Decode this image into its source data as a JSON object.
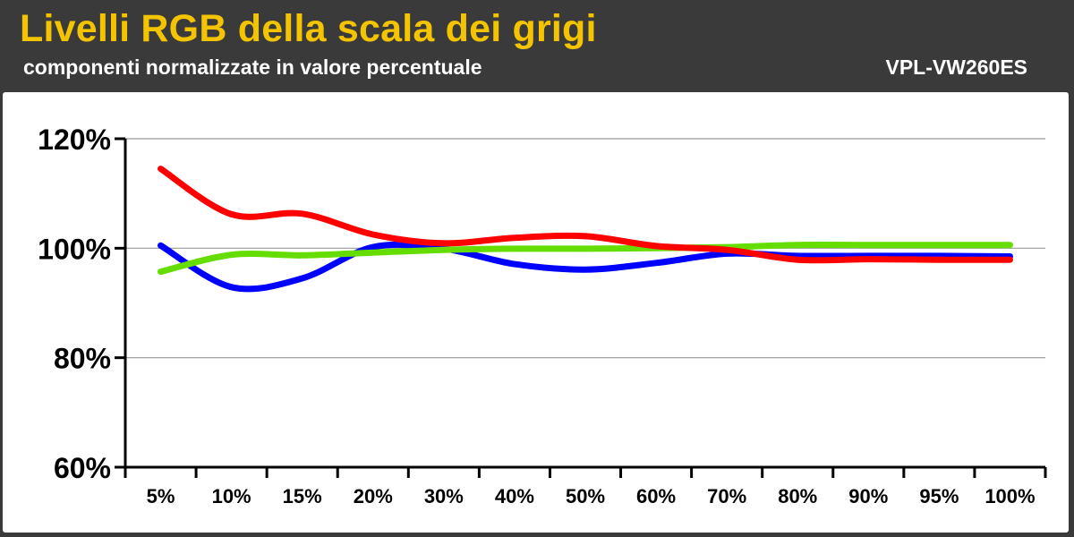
{
  "header": {
    "title": "Livelli RGB della scala dei grigi",
    "subtitle": "componenti normalizzate in valore percentuale",
    "model": "VPL-VW260ES"
  },
  "colors": {
    "title": "#f5c400",
    "header_bg": "#3a3a3a",
    "red": "#ff0000",
    "green": "#66dd00",
    "blue": "#0000ff"
  },
  "chart_data": {
    "type": "line",
    "categories": [
      "5%",
      "10%",
      "15%",
      "20%",
      "30%",
      "40%",
      "50%",
      "60%",
      "70%",
      "80%",
      "90%",
      "95%",
      "100%"
    ],
    "y_ticks": [
      "60%",
      "80%",
      "100%",
      "120%"
    ],
    "ylim": [
      60,
      120
    ],
    "grid": true,
    "series": [
      {
        "color": "#ff0000",
        "values": [
          114.5,
          106.2,
          106.3,
          102.5,
          100.9,
          101.9,
          102.2,
          100.4,
          99.7,
          97.9,
          98.0,
          97.9,
          97.9
        ]
      },
      {
        "color": "#0000ff",
        "values": [
          100.5,
          92.9,
          94.5,
          100.2,
          99.9,
          97.1,
          96.1,
          97.3,
          99.0,
          98.6,
          98.6,
          98.6,
          98.5
        ]
      },
      {
        "color": "#66dd00",
        "values": [
          95.7,
          98.8,
          98.7,
          99.2,
          99.7,
          99.9,
          99.9,
          100.0,
          100.2,
          100.6,
          100.6,
          100.6,
          100.6
        ]
      }
    ]
  }
}
